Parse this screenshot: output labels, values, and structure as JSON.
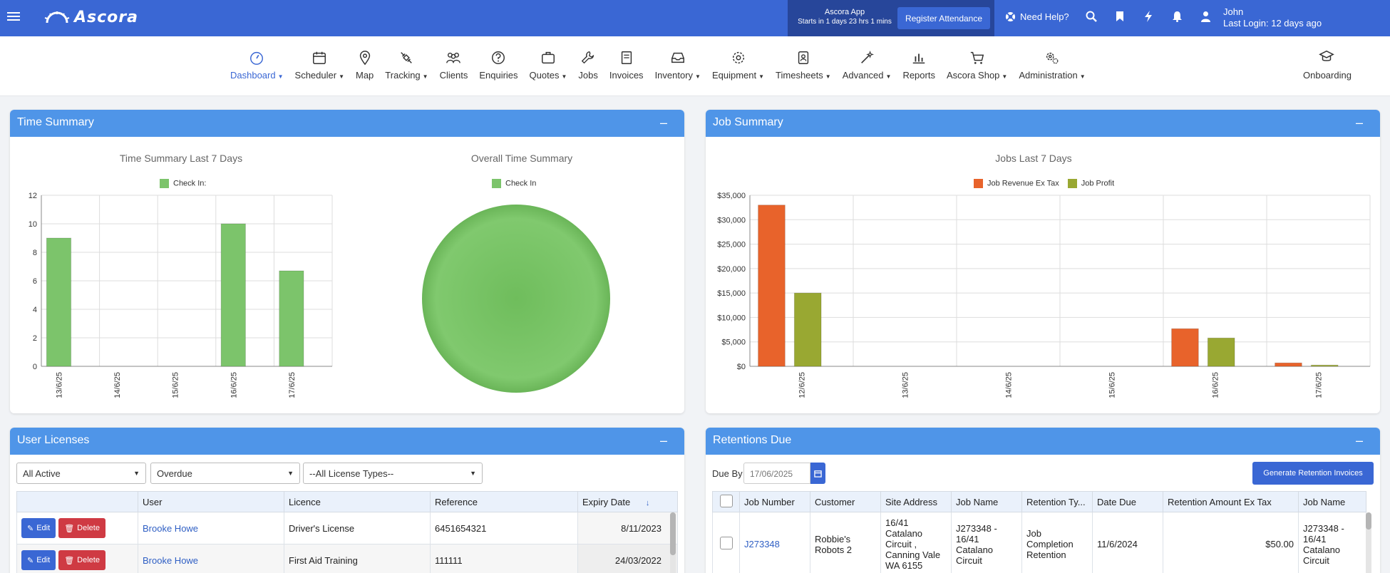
{
  "header": {
    "brand": "Ascora",
    "app_title": "Ascora App",
    "app_status": "Starts in 1 days 23 hrs 1 mins",
    "register_label": "Register Attendance",
    "need_help": "Need Help?",
    "user_name": "John",
    "last_login": "Last Login: 12 days ago"
  },
  "nav": {
    "items": [
      {
        "label": "Dashboard",
        "icon": "gauge-icon",
        "caret": true,
        "active": true
      },
      {
        "label": "Scheduler",
        "icon": "calendar-icon",
        "caret": true
      },
      {
        "label": "Map",
        "icon": "map-pin-icon",
        "caret": false
      },
      {
        "label": "Tracking",
        "icon": "satellite-icon",
        "caret": true
      },
      {
        "label": "Clients",
        "icon": "users-icon",
        "caret": false
      },
      {
        "label": "Enquiries",
        "icon": "question-icon",
        "caret": false
      },
      {
        "label": "Quotes",
        "icon": "briefcase-icon",
        "caret": true
      },
      {
        "label": "Jobs",
        "icon": "wrench-icon",
        "caret": false
      },
      {
        "label": "Invoices",
        "icon": "book-icon",
        "caret": false
      },
      {
        "label": "Inventory",
        "icon": "inbox-icon",
        "caret": true
      },
      {
        "label": "Equipment",
        "icon": "gear-icon",
        "caret": true
      },
      {
        "label": "Timesheets",
        "icon": "id-badge-icon",
        "caret": true
      },
      {
        "label": "Advanced",
        "icon": "magic-wand-icon",
        "caret": true
      },
      {
        "label": "Reports",
        "icon": "bar-chart-icon",
        "caret": false
      },
      {
        "label": "Ascora Shop",
        "icon": "cart-icon",
        "caret": true
      },
      {
        "label": "Administration",
        "icon": "gears-icon",
        "caret": true
      }
    ],
    "onboarding": "Onboarding"
  },
  "panels": {
    "time_summary": "Time Summary",
    "job_summary": "Job Summary",
    "user_licenses": "User Licenses",
    "retentions_due": "Retentions Due",
    "minimize": "–"
  },
  "chart_data": [
    {
      "type": "bar",
      "title": "Time Summary Last 7 Days",
      "categories": [
        "13/6/25",
        "14/6/25",
        "15/6/25",
        "16/6/25",
        "17/6/25"
      ],
      "series": [
        {
          "name": "Check In:",
          "values": [
            9,
            0,
            0,
            10,
            6.7
          ]
        }
      ],
      "ylim": [
        0,
        12
      ],
      "yticks": [
        "0",
        "2",
        "4",
        "6",
        "8",
        "10",
        "12"
      ],
      "colors": [
        "#7cc46b"
      ]
    },
    {
      "type": "pie",
      "title": "Overall Time Summary",
      "series": [
        {
          "name": "Check In",
          "values": [
            100
          ]
        }
      ],
      "colors": [
        "#7cc46b"
      ]
    },
    {
      "type": "bar",
      "title": "Jobs Last 7 Days",
      "categories": [
        "12/6/25",
        "13/6/25",
        "14/6/25",
        "15/6/25",
        "16/6/25",
        "17/6/25"
      ],
      "series": [
        {
          "name": "Job Revenue Ex Tax",
          "values": [
            33000,
            0,
            0,
            0,
            7700,
            700
          ]
        },
        {
          "name": "Job Profit",
          "values": [
            15000,
            0,
            0,
            0,
            5800,
            250
          ]
        }
      ],
      "ylim": [
        0,
        35000
      ],
      "yticks": [
        "$0",
        "$5,000",
        "$10,000",
        "$15,000",
        "$20,000",
        "$25,000",
        "$30,000",
        "$35,000"
      ],
      "colors": [
        "#e8632b",
        "#99a832"
      ]
    }
  ],
  "licenses": {
    "filters": [
      "All Active",
      "Overdue",
      "--All License Types--"
    ],
    "columns": [
      "",
      "User",
      "Licence",
      "Reference",
      "Expiry Date"
    ],
    "sort_arrow": "↓",
    "edit_label": "Edit",
    "delete_label": "Delete",
    "rows": [
      {
        "user": "Brooke Howe",
        "licence": "Driver's License",
        "reference": "6451654321",
        "expiry": "8/11/2023"
      },
      {
        "user": "Brooke Howe",
        "licence": "First Aid Training",
        "reference": "111111",
        "expiry": "24/03/2022"
      }
    ]
  },
  "retentions": {
    "due_by_label": "Due By",
    "due_by_value": "17/06/2025",
    "generate_label": "Generate Retention Invoices",
    "columns": [
      "Job Number",
      "Customer",
      "Site Address",
      "Job Name",
      "Retention Ty...",
      "Date Due",
      "Retention Amount Ex Tax",
      "Job Name"
    ],
    "rows": [
      {
        "job_number": "J273348",
        "customer": "Robbie's Robots 2",
        "site_address": "16/41 Catalano Circuit , Canning Vale WA 6155",
        "job_name": "J273348 - 16/41 Catalano Circuit",
        "retention_type": "Job Completion Retention",
        "date_due": "11/6/2024",
        "amount": "$50.00",
        "job_name2": "J273348 - 16/41 Catalano Circuit"
      }
    ]
  }
}
